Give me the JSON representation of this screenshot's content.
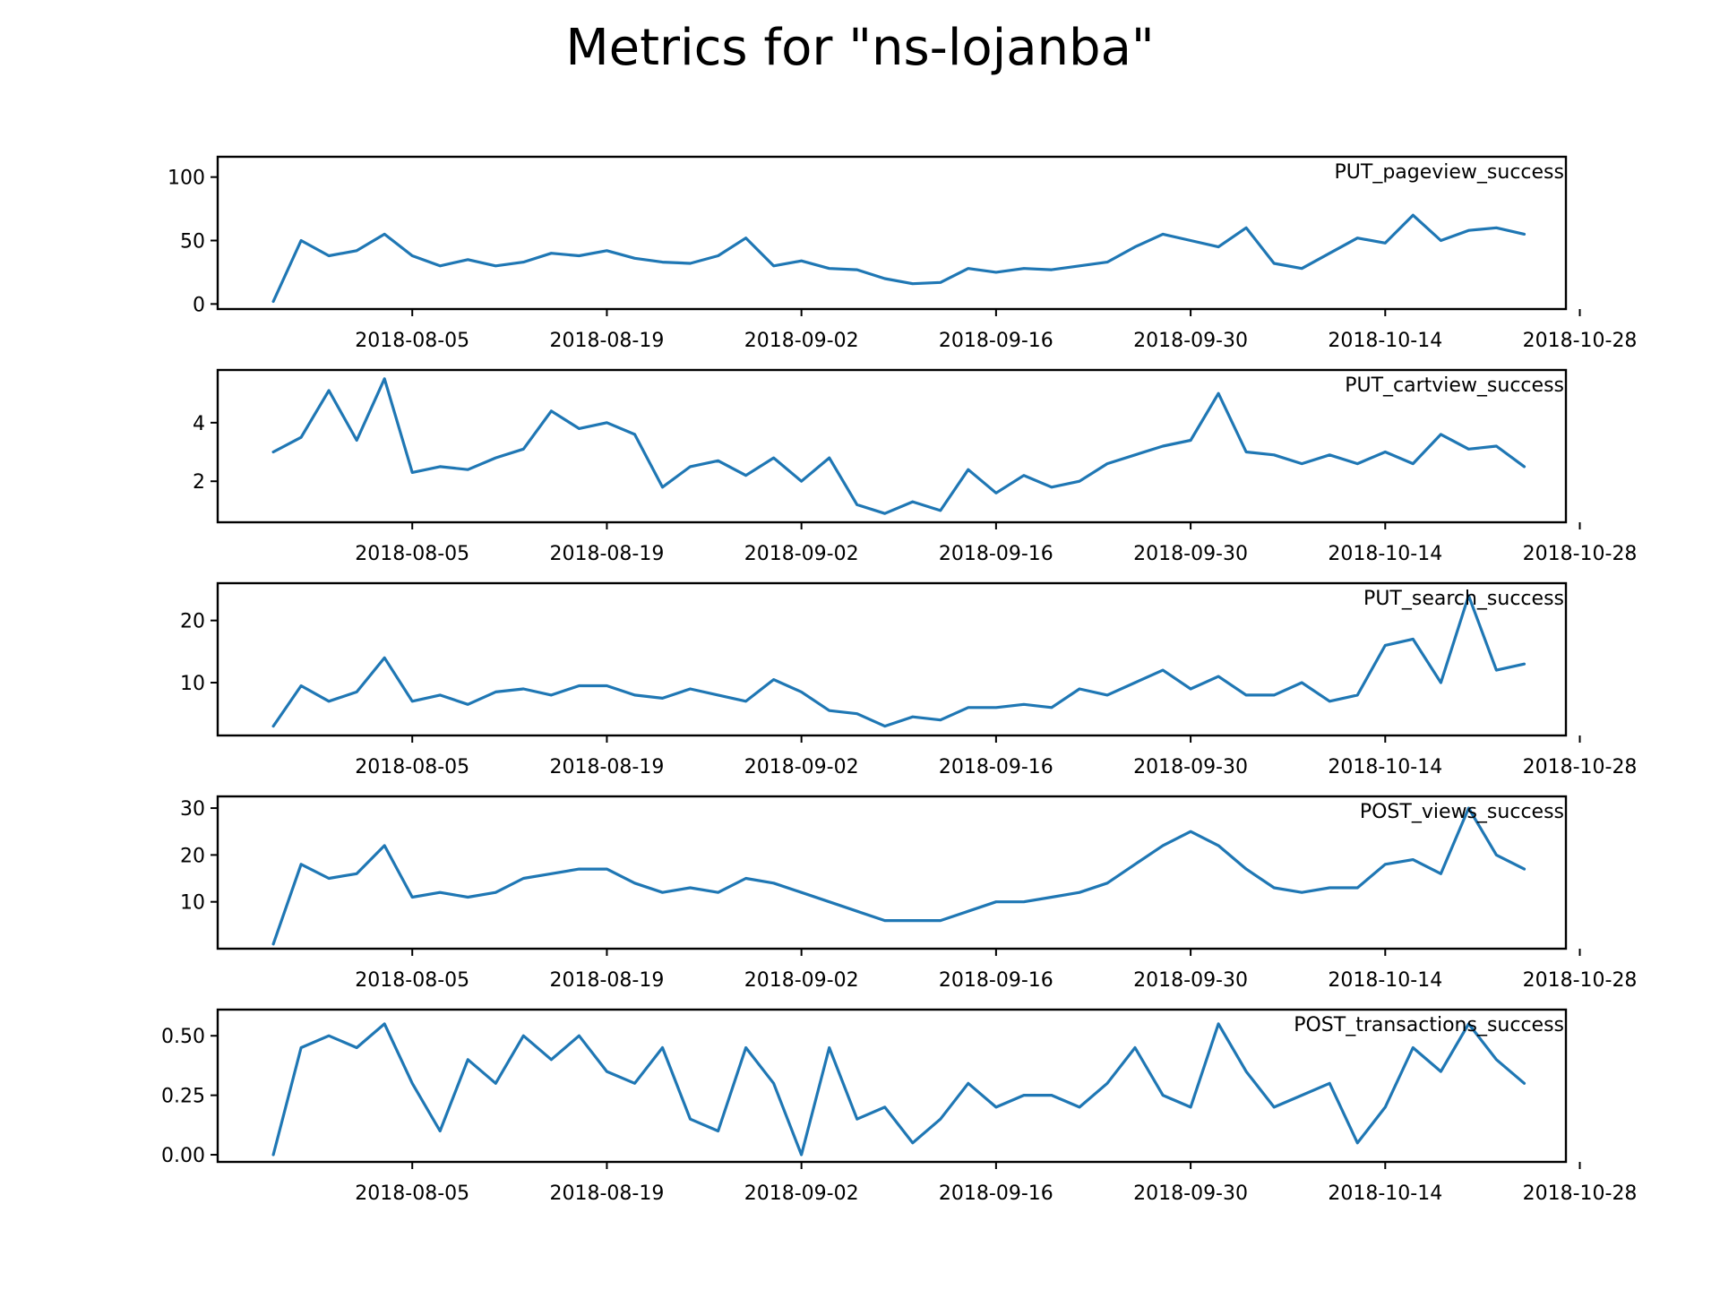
{
  "title": "Metrics for \"ns-lojanba\"",
  "line_color": "#1f77b4",
  "chart_data": [
    {
      "type": "line",
      "series_label": "PUT_pageview_success",
      "ylim": [
        -4,
        116
      ],
      "yticks": [
        0,
        50,
        100
      ],
      "ytick_labels": [
        "0",
        "50",
        "100"
      ],
      "xlim": [
        "2017-07-22",
        "2018-10-27"
      ],
      "xticks": [
        "2018-08-05",
        "2018-08-19",
        "2018-09-02",
        "2018-09-16",
        "2018-09-30",
        "2018-10-14",
        "2018-10-28"
      ],
      "x": [
        "2018-07-26",
        "2018-07-28",
        "2018-07-30",
        "2018-08-01",
        "2018-08-03",
        "2018-08-05",
        "2018-08-07",
        "2018-08-09",
        "2018-08-11",
        "2018-08-13",
        "2018-08-15",
        "2018-08-17",
        "2018-08-19",
        "2018-08-21",
        "2018-08-23",
        "2018-08-25",
        "2018-08-27",
        "2018-08-29",
        "2018-08-31",
        "2018-09-02",
        "2018-09-04",
        "2018-09-06",
        "2018-09-08",
        "2018-09-10",
        "2018-09-12",
        "2018-09-14",
        "2018-09-16",
        "2018-09-18",
        "2018-09-20",
        "2018-09-22",
        "2018-09-24",
        "2018-09-26",
        "2018-09-28",
        "2018-09-30",
        "2018-10-02",
        "2018-10-04",
        "2018-10-06",
        "2018-10-08",
        "2018-10-10",
        "2018-10-12",
        "2018-10-14",
        "2018-10-16",
        "2018-10-18",
        "2018-10-20",
        "2018-10-22",
        "2018-10-24"
      ],
      "y": [
        2,
        50,
        38,
        42,
        55,
        38,
        30,
        35,
        30,
        33,
        40,
        38,
        42,
        36,
        33,
        32,
        38,
        52,
        30,
        34,
        28,
        27,
        20,
        16,
        17,
        28,
        25,
        28,
        27,
        30,
        33,
        45,
        55,
        50,
        45,
        60,
        32,
        28,
        40,
        52,
        48,
        70,
        50,
        58,
        60,
        55
      ]
    },
    {
      "type": "line",
      "series_label": "PUT_cartview_success",
      "ylim": [
        0.6,
        5.8
      ],
      "yticks": [
        2,
        4
      ],
      "ytick_labels": [
        "2",
        "4"
      ],
      "xlim": [
        "2017-07-22",
        "2018-10-27"
      ],
      "xticks": [
        "2018-08-05",
        "2018-08-19",
        "2018-09-02",
        "2018-09-16",
        "2018-09-30",
        "2018-10-14",
        "2018-10-28"
      ],
      "x": [
        "2018-07-26",
        "2018-07-28",
        "2018-07-30",
        "2018-08-01",
        "2018-08-03",
        "2018-08-05",
        "2018-08-07",
        "2018-08-09",
        "2018-08-11",
        "2018-08-13",
        "2018-08-15",
        "2018-08-17",
        "2018-08-19",
        "2018-08-21",
        "2018-08-23",
        "2018-08-25",
        "2018-08-27",
        "2018-08-29",
        "2018-08-31",
        "2018-09-02",
        "2018-09-04",
        "2018-09-06",
        "2018-09-08",
        "2018-09-10",
        "2018-09-12",
        "2018-09-14",
        "2018-09-16",
        "2018-09-18",
        "2018-09-20",
        "2018-09-22",
        "2018-09-24",
        "2018-09-26",
        "2018-09-28",
        "2018-09-30",
        "2018-10-02",
        "2018-10-04",
        "2018-10-06",
        "2018-10-08",
        "2018-10-10",
        "2018-10-12",
        "2018-10-14",
        "2018-10-16",
        "2018-10-18",
        "2018-10-20",
        "2018-10-22",
        "2018-10-24"
      ],
      "y": [
        3.0,
        3.5,
        5.1,
        3.4,
        5.5,
        2.3,
        2.5,
        2.4,
        2.8,
        3.1,
        4.4,
        3.8,
        4.0,
        3.6,
        1.8,
        2.5,
        2.7,
        2.2,
        2.8,
        2.0,
        2.8,
        1.2,
        0.9,
        1.3,
        1.0,
        2.4,
        1.6,
        2.2,
        1.8,
        2.0,
        2.6,
        2.9,
        3.2,
        3.4,
        5.0,
        3.0,
        2.9,
        2.6,
        2.9,
        2.6,
        3.0,
        2.6,
        3.6,
        3.1,
        3.2,
        2.5
      ]
    },
    {
      "type": "line",
      "series_label": "PUT_search_success",
      "ylim": [
        1.5,
        26
      ],
      "yticks": [
        10,
        20
      ],
      "ytick_labels": [
        "10",
        "20"
      ],
      "xlim": [
        "2017-07-22",
        "2018-10-27"
      ],
      "xticks": [
        "2018-08-05",
        "2018-08-19",
        "2018-09-02",
        "2018-09-16",
        "2018-09-30",
        "2018-10-14",
        "2018-10-28"
      ],
      "x": [
        "2018-07-26",
        "2018-07-28",
        "2018-07-30",
        "2018-08-01",
        "2018-08-03",
        "2018-08-05",
        "2018-08-07",
        "2018-08-09",
        "2018-08-11",
        "2018-08-13",
        "2018-08-15",
        "2018-08-17",
        "2018-08-19",
        "2018-08-21",
        "2018-08-23",
        "2018-08-25",
        "2018-08-27",
        "2018-08-29",
        "2018-08-31",
        "2018-09-02",
        "2018-09-04",
        "2018-09-06",
        "2018-09-08",
        "2018-09-10",
        "2018-09-12",
        "2018-09-14",
        "2018-09-16",
        "2018-09-18",
        "2018-09-20",
        "2018-09-22",
        "2018-09-24",
        "2018-09-26",
        "2018-09-28",
        "2018-09-30",
        "2018-10-02",
        "2018-10-04",
        "2018-10-06",
        "2018-10-08",
        "2018-10-10",
        "2018-10-12",
        "2018-10-14",
        "2018-10-16",
        "2018-10-18",
        "2018-10-20",
        "2018-10-22",
        "2018-10-24"
      ],
      "y": [
        3,
        9.5,
        7,
        8.5,
        14,
        7,
        8,
        6.5,
        8.5,
        9,
        8,
        9.5,
        9.5,
        8,
        7.5,
        9,
        8,
        7,
        10.5,
        8.5,
        5.5,
        5,
        3,
        4.5,
        4,
        6,
        6,
        6.5,
        6,
        9,
        8,
        10,
        12,
        9,
        11,
        8,
        8,
        10,
        7,
        8,
        16,
        17,
        10,
        24,
        12,
        13
      ]
    },
    {
      "type": "line",
      "series_label": "POST_views_success",
      "ylim": [
        0,
        32.5
      ],
      "yticks": [
        10,
        20,
        30
      ],
      "ytick_labels": [
        "10",
        "20",
        "30"
      ],
      "xlim": [
        "2017-07-22",
        "2018-10-27"
      ],
      "xticks": [
        "2018-08-05",
        "2018-08-19",
        "2018-09-02",
        "2018-09-16",
        "2018-09-30",
        "2018-10-14",
        "2018-10-28"
      ],
      "x": [
        "2018-07-26",
        "2018-07-28",
        "2018-07-30",
        "2018-08-01",
        "2018-08-03",
        "2018-08-05",
        "2018-08-07",
        "2018-08-09",
        "2018-08-11",
        "2018-08-13",
        "2018-08-15",
        "2018-08-17",
        "2018-08-19",
        "2018-08-21",
        "2018-08-23",
        "2018-08-25",
        "2018-08-27",
        "2018-08-29",
        "2018-08-31",
        "2018-09-02",
        "2018-09-04",
        "2018-09-06",
        "2018-09-08",
        "2018-09-10",
        "2018-09-12",
        "2018-09-14",
        "2018-09-16",
        "2018-09-18",
        "2018-09-20",
        "2018-09-22",
        "2018-09-24",
        "2018-09-26",
        "2018-09-28",
        "2018-09-30",
        "2018-10-02",
        "2018-10-04",
        "2018-10-06",
        "2018-10-08",
        "2018-10-10",
        "2018-10-12",
        "2018-10-14",
        "2018-10-16",
        "2018-10-18",
        "2018-10-20",
        "2018-10-22",
        "2018-10-24"
      ],
      "y": [
        1,
        18,
        15,
        16,
        22,
        11,
        12,
        11,
        12,
        15,
        16,
        17,
        17,
        14,
        12,
        13,
        12,
        15,
        14,
        12,
        10,
        8,
        6,
        6,
        6,
        8,
        10,
        10,
        11,
        12,
        14,
        18,
        22,
        25,
        22,
        17,
        13,
        12,
        13,
        13,
        18,
        19,
        16,
        30,
        20,
        17
      ]
    },
    {
      "type": "line",
      "series_label": "POST_transactions_success",
      "ylim": [
        -0.03,
        0.61
      ],
      "yticks": [
        0.0,
        0.25,
        0.5
      ],
      "ytick_labels": [
        "0.00",
        "0.25",
        "0.50"
      ],
      "xlim": [
        "2017-07-22",
        "2018-10-27"
      ],
      "xticks": [
        "2018-08-05",
        "2018-08-19",
        "2018-09-02",
        "2018-09-16",
        "2018-09-30",
        "2018-10-14",
        "2018-10-28"
      ],
      "x": [
        "2018-07-26",
        "2018-07-28",
        "2018-07-30",
        "2018-08-01",
        "2018-08-03",
        "2018-08-05",
        "2018-08-07",
        "2018-08-09",
        "2018-08-11",
        "2018-08-13",
        "2018-08-15",
        "2018-08-17",
        "2018-08-19",
        "2018-08-21",
        "2018-08-23",
        "2018-08-25",
        "2018-08-27",
        "2018-08-29",
        "2018-08-31",
        "2018-09-02",
        "2018-09-04",
        "2018-09-06",
        "2018-09-08",
        "2018-09-10",
        "2018-09-12",
        "2018-09-14",
        "2018-09-16",
        "2018-09-18",
        "2018-09-20",
        "2018-09-22",
        "2018-09-24",
        "2018-09-26",
        "2018-09-28",
        "2018-09-30",
        "2018-10-02",
        "2018-10-04",
        "2018-10-06",
        "2018-10-08",
        "2018-10-10",
        "2018-10-12",
        "2018-10-14",
        "2018-10-16",
        "2018-10-18",
        "2018-10-20",
        "2018-10-22",
        "2018-10-24"
      ],
      "y": [
        0.0,
        0.45,
        0.5,
        0.45,
        0.55,
        0.3,
        0.1,
        0.4,
        0.3,
        0.5,
        0.4,
        0.5,
        0.35,
        0.3,
        0.45,
        0.15,
        0.1,
        0.45,
        0.3,
        0.0,
        0.45,
        0.15,
        0.2,
        0.05,
        0.15,
        0.3,
        0.2,
        0.25,
        0.25,
        0.2,
        0.3,
        0.45,
        0.25,
        0.2,
        0.55,
        0.35,
        0.2,
        0.25,
        0.3,
        0.05,
        0.2,
        0.45,
        0.35,
        0.55,
        0.4,
        0.3
      ]
    }
  ]
}
